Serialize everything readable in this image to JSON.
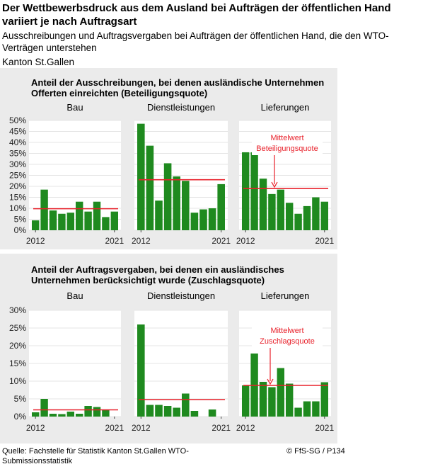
{
  "header": {
    "title": "Der Wettbewerbsdruck aus dem Ausland bei Aufträgen der öffentlichen Hand variiert je nach Auftragsart",
    "subtitle": "Ausschreibungen und Auftragsvergaben bei Aufträgen der öffentlichen Hand, die den WTO-Verträgen unterstehen",
    "region": "Kanton St.Gallen"
  },
  "footer": {
    "source": "Quelle: Fachstelle für Statistik Kanton St.Gallen WTO-Submissionsstatistik",
    "copyright": "© FfS-SG / P134"
  },
  "colors": {
    "bar": "#1f8a1f",
    "mean_line": "#e8202a",
    "panel_bg": "#ffffff",
    "frame_bg": "#ebebeb",
    "annotation": "#e8202a"
  },
  "chart_data": [
    {
      "type": "bar",
      "title": "Anteil der Ausschreibungen, bei denen ausländische Unternehmen Offerten einreichten (Beteiligungsquote)",
      "x": [
        2012,
        2013,
        2014,
        2015,
        2016,
        2017,
        2018,
        2019,
        2020,
        2021
      ],
      "x_tick_labels": [
        "2012",
        "2021"
      ],
      "y_ticks": [
        "0%",
        "5%",
        "10%",
        "15%",
        "20%",
        "25%",
        "30%",
        "35%",
        "40%",
        "45%",
        "50%"
      ],
      "ylim": [
        0,
        50
      ],
      "panels": [
        {
          "name": "Bau",
          "values": [
            4.5,
            18.5,
            9,
            7.5,
            8,
            13,
            8.5,
            13,
            6,
            8.5
          ],
          "mean": 9.8
        },
        {
          "name": "Dienstleistungen",
          "values": [
            48.5,
            38.5,
            13.5,
            30.5,
            24.5,
            22.5,
            8,
            9.5,
            10,
            21
          ],
          "mean": 23
        },
        {
          "name": "Lieferungen",
          "values": [
            35.5,
            35.5,
            23.5,
            16.5,
            18.5,
            12.5,
            7.5,
            11,
            15,
            13
          ],
          "mean": 19,
          "annotation": {
            "line1": "Mittelwert",
            "line2": "Beteiligungsquote"
          }
        }
      ]
    },
    {
      "type": "bar",
      "title": "Anteil der Auftragsvergaben, bei denen ein ausländisches Unternehmen berücksichtigt wurde (Zuschlagsquote)",
      "x": [
        2012,
        2013,
        2014,
        2015,
        2016,
        2017,
        2018,
        2019,
        2020,
        2021
      ],
      "x_tick_labels": [
        "2012",
        "2021"
      ],
      "y_ticks": [
        "0%",
        "5%",
        "10%",
        "15%",
        "20%",
        "25%",
        "30%"
      ],
      "ylim": [
        0,
        30
      ],
      "panels": [
        {
          "name": "Bau",
          "values": [
            1.2,
            5,
            0.8,
            0.7,
            1.4,
            0.8,
            3,
            2.7,
            2,
            0
          ],
          "mean": 1.9
        },
        {
          "name": "Dienstleistungen",
          "values": [
            26,
            3.3,
            3.3,
            3,
            2.5,
            6.5,
            1.6,
            0,
            2,
            0
          ],
          "mean": 4.8
        },
        {
          "name": "Lieferungen",
          "values": [
            8.8,
            17.8,
            9.8,
            8.3,
            13.7,
            9.3,
            2.5,
            4.3,
            4.3,
            9.7
          ],
          "mean": 8.8,
          "annotation": {
            "line1": "Mittelwert",
            "line2": "Zuschlagsquote"
          }
        }
      ]
    }
  ]
}
